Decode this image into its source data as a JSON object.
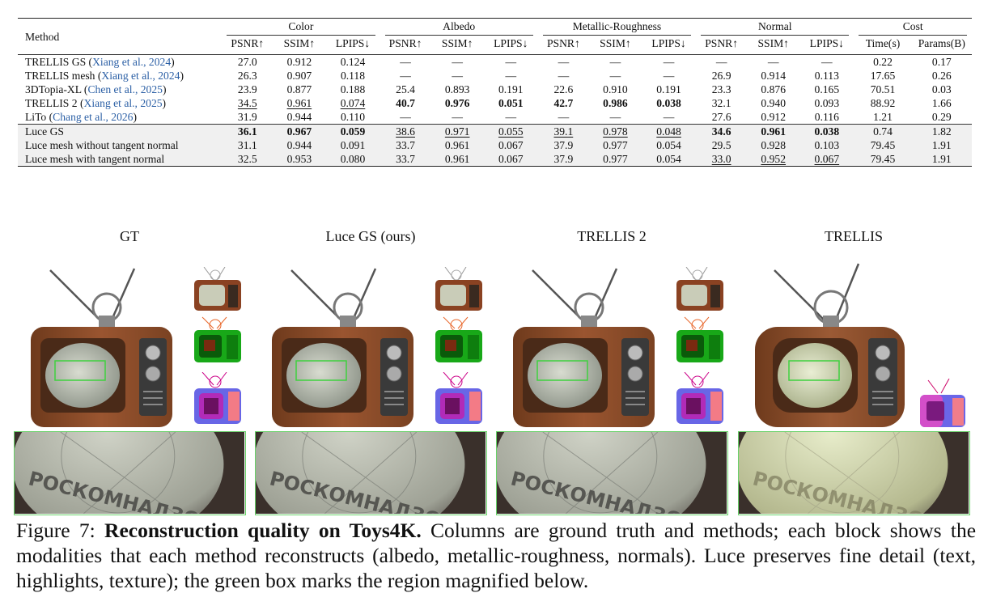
{
  "table": {
    "method_header": "Method",
    "groups": [
      {
        "name": "Color",
        "cols": [
          "PSNR↑",
          "SSIM↑",
          "LPIPS↓"
        ]
      },
      {
        "name": "Albedo",
        "cols": [
          "PSNR↑",
          "SSIM↑",
          "LPIPS↓"
        ]
      },
      {
        "name": "Metallic-Roughness",
        "cols": [
          "PSNR↑",
          "SSIM↑",
          "LPIPS↓"
        ]
      },
      {
        "name": "Normal",
        "cols": [
          "PSNR↑",
          "SSIM↑",
          "LPIPS↓"
        ]
      },
      {
        "name": "Cost",
        "cols": [
          "Time(s)",
          "Params(B)"
        ]
      }
    ],
    "rows": [
      {
        "method": "TRELLIS GS",
        "cite": "Xiang et al., 2024",
        "values": [
          "27.0",
          "0.912",
          "0.124",
          "—",
          "—",
          "—",
          "—",
          "—",
          "—",
          "—",
          "—",
          "—",
          "0.22",
          "0.17"
        ]
      },
      {
        "method": "TRELLIS mesh",
        "cite": "Xiang et al., 2024",
        "values": [
          "26.3",
          "0.907",
          "0.118",
          "—",
          "—",
          "—",
          "—",
          "—",
          "—",
          "26.9",
          "0.914",
          "0.113",
          "17.65",
          "0.26"
        ]
      },
      {
        "method": "3DTopia-XL",
        "cite": "Chen et al., 2025",
        "values": [
          "23.9",
          "0.877",
          "0.188",
          "25.4",
          "0.893",
          "0.191",
          "22.6",
          "0.910",
          "0.191",
          "23.3",
          "0.876",
          "0.165",
          "70.51",
          "0.03"
        ]
      },
      {
        "method": "TRELLIS 2",
        "cite": "Xiang et al., 2025",
        "values": [
          "34.5",
          "0.961",
          "0.074",
          "40.7",
          "0.976",
          "0.051",
          "42.7",
          "0.986",
          "0.038",
          "32.1",
          "0.940",
          "0.093",
          "88.92",
          "1.66"
        ]
      },
      {
        "method": "LiTo",
        "cite": "Chang et al., 2026",
        "values": [
          "31.9",
          "0.944",
          "0.110",
          "—",
          "—",
          "—",
          "—",
          "—",
          "—",
          "27.6",
          "0.912",
          "0.116",
          "1.21",
          "0.29"
        ]
      },
      {
        "method": "Luce GS",
        "cite": "",
        "values": [
          "36.1",
          "0.967",
          "0.059",
          "38.6",
          "0.971",
          "0.055",
          "39.1",
          "0.978",
          "0.048",
          "34.6",
          "0.961",
          "0.038",
          "0.74",
          "1.82"
        ]
      },
      {
        "method": "Luce mesh without tangent normal",
        "cite": "",
        "values": [
          "31.1",
          "0.944",
          "0.091",
          "33.7",
          "0.961",
          "0.067",
          "37.9",
          "0.977",
          "0.054",
          "29.5",
          "0.928",
          "0.103",
          "79.45",
          "1.91"
        ]
      },
      {
        "method": "Luce mesh with tangent normal",
        "cite": "",
        "values": [
          "32.5",
          "0.953",
          "0.080",
          "33.7",
          "0.961",
          "0.067",
          "37.9",
          "0.977",
          "0.054",
          "33.0",
          "0.952",
          "0.067",
          "79.45",
          "1.91"
        ]
      }
    ],
    "bold_cells": [
      [
        3,
        3
      ],
      [
        3,
        4
      ],
      [
        3,
        5
      ],
      [
        3,
        6
      ],
      [
        3,
        7
      ],
      [
        3,
        8
      ],
      [
        5,
        0
      ],
      [
        5,
        1
      ],
      [
        5,
        2
      ],
      [
        5,
        9
      ],
      [
        5,
        10
      ],
      [
        5,
        11
      ]
    ],
    "underline_cells": [
      [
        3,
        0
      ],
      [
        3,
        1
      ],
      [
        3,
        2
      ],
      [
        5,
        3
      ],
      [
        5,
        4
      ],
      [
        5,
        5
      ],
      [
        5,
        6
      ],
      [
        5,
        7
      ],
      [
        5,
        8
      ],
      [
        7,
        9
      ],
      [
        7,
        10
      ],
      [
        7,
        11
      ]
    ]
  },
  "figure": {
    "columns": [
      "GT",
      "Luce GS (ours)",
      "TRELLIS 2",
      "TRELLIS"
    ],
    "zoom_text": "РОСКОМНАДЗОР",
    "box_color": "#3fd13f"
  },
  "caption": {
    "label": "Figure 7:",
    "bold": "Reconstruction quality on Toys4K.",
    "text": "Columns are ground truth and methods; each block shows the modalities that each method reconstructs (albedo, metallic-roughness, normals). Luce preserves fine detail (text, highlights, texture); the green box marks the region magnified below."
  }
}
